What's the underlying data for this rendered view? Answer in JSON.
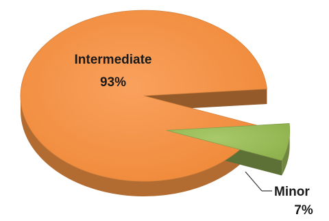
{
  "chart_data": {
    "type": "pie",
    "style": "3d-exploded",
    "slices": [
      {
        "name": "Intermediate",
        "percent": 93,
        "label": "Intermediate",
        "value_label": "93%",
        "color": "#F79646",
        "exploded": false
      },
      {
        "name": "Minor",
        "percent": 7,
        "label": "Minor",
        "value_label": "7%",
        "color": "#9BBB59",
        "exploded": true
      }
    ],
    "legend": "none",
    "title": ""
  }
}
